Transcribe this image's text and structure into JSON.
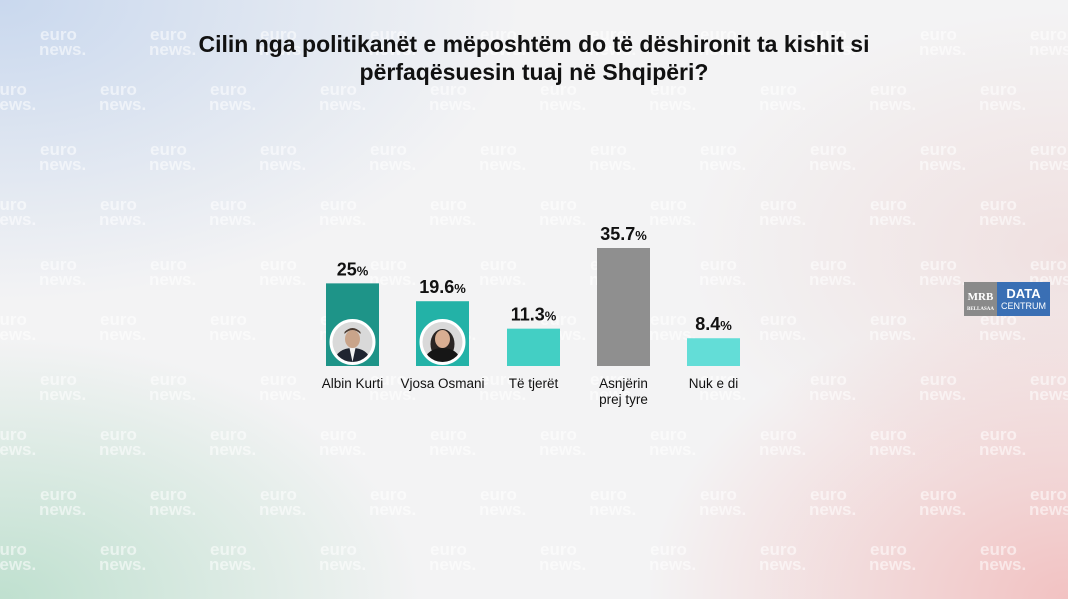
{
  "title": "Cilin nga politikanët e mëposhtëm do të dëshironit ta kishit si përfaqësuesin tuaj në Shqipëri?",
  "watermark": {
    "line1": "euro",
    "line2": "news."
  },
  "logo": {
    "mrb": "MRB",
    "mrb_sub": "BELLASAA",
    "data": "DATA",
    "centrum": "CENTRUM"
  },
  "colors": {
    "albin": "#1e9488",
    "vjosa": "#23b2a7",
    "others": "#43cfc4",
    "none": "#8f8f8f",
    "dontknow": "#63ddd7"
  },
  "chart_data": {
    "type": "bar",
    "title": "Cilin nga politikanët e mëposhtëm do të dëshironit ta kishit si përfaqësuesin tuaj në Shqipëri?",
    "categories": [
      "Albin Kurti",
      "Vjosa Osmani",
      "Të tjerët",
      "Asnjërin prej tyre",
      "Nuk e di"
    ],
    "values": [
      25,
      19.6,
      11.3,
      35.7,
      8.4
    ],
    "value_labels": [
      "25",
      "19.6",
      "11.3",
      "35.7",
      "8.4"
    ],
    "unit": "%",
    "bar_colors": [
      "#1e9488",
      "#23b2a7",
      "#43cfc4",
      "#8f8f8f",
      "#63ddd7"
    ],
    "photos": [
      "albin-kurti-photo",
      "vjosa-osmani-photo",
      "",
      "",
      ""
    ],
    "ylim": [
      0,
      35.7
    ],
    "grid": false,
    "legend": "none"
  }
}
